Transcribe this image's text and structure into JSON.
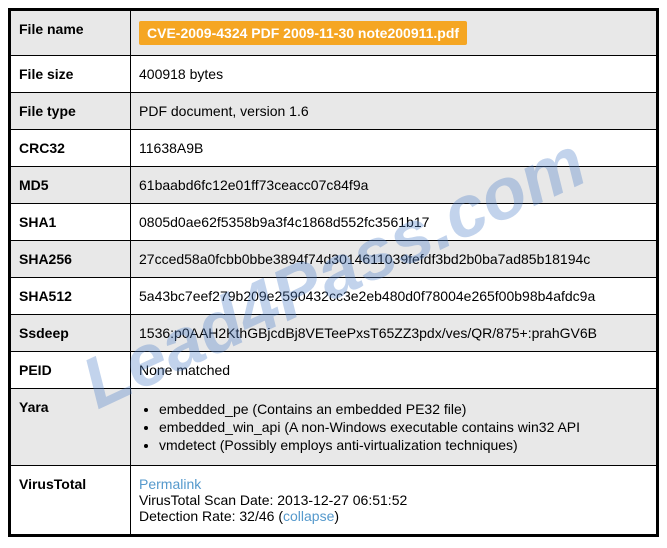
{
  "watermark": "Lead4Pass.com",
  "labels": {
    "file_name": "File name",
    "file_size": "File size",
    "file_type": "File type",
    "crc32": "CRC32",
    "md5": "MD5",
    "sha1": "SHA1",
    "sha256": "SHA256",
    "sha512": "SHA512",
    "ssdeep": "Ssdeep",
    "peid": "PEID",
    "yara": "Yara",
    "virustotal": "VirusTotal"
  },
  "values": {
    "file_name": "CVE-2009-4324 PDF 2009-11-30 note200911.pdf",
    "file_size": "400918 bytes",
    "file_type": "PDF document, version 1.6",
    "crc32": "11638A9B",
    "md5": "61baabd6fc12e01ff73ceacc07c84f9a",
    "sha1": "0805d0ae62f5358b9a3f4c1868d552fc3561b17",
    "sha256": "27cced58a0fcbb0bbe3894f74d3014611039fefdf3bd2b0ba7ad85b18194c",
    "sha512": "5a43bc7eef279b209e2590432cc3e2eb480d0f78004e265f00b98b4afdc9a",
    "ssdeep": "1536:p0AAH2KthGBjcdBj8VETeePxsT65ZZ3pdx/ves/QR/875+:prahGV6B",
    "peid": "None matched"
  },
  "yara_items": [
    "embedded_pe (Contains an embedded PE32 file)",
    "embedded_win_api (A non-Windows executable contains win32 API",
    "vmdetect (Possibly employs anti-virtualization techniques)"
  ],
  "virustotal": {
    "permalink": "Permalink",
    "scan_date_label": "VirusTotal Scan Date: ",
    "scan_date": "2013-12-27 06:51:52",
    "detection_label": "Detection Rate: ",
    "detection_rate": "32/46",
    "collapse": "collapse"
  },
  "colors": {
    "badge_bg": "#f5a623",
    "badge_text": "#ffffff",
    "link": "#5599cc",
    "alt_row": "#e8e8e8",
    "border": "#000000",
    "watermark": "rgba(80, 130, 200, 0.35)"
  }
}
